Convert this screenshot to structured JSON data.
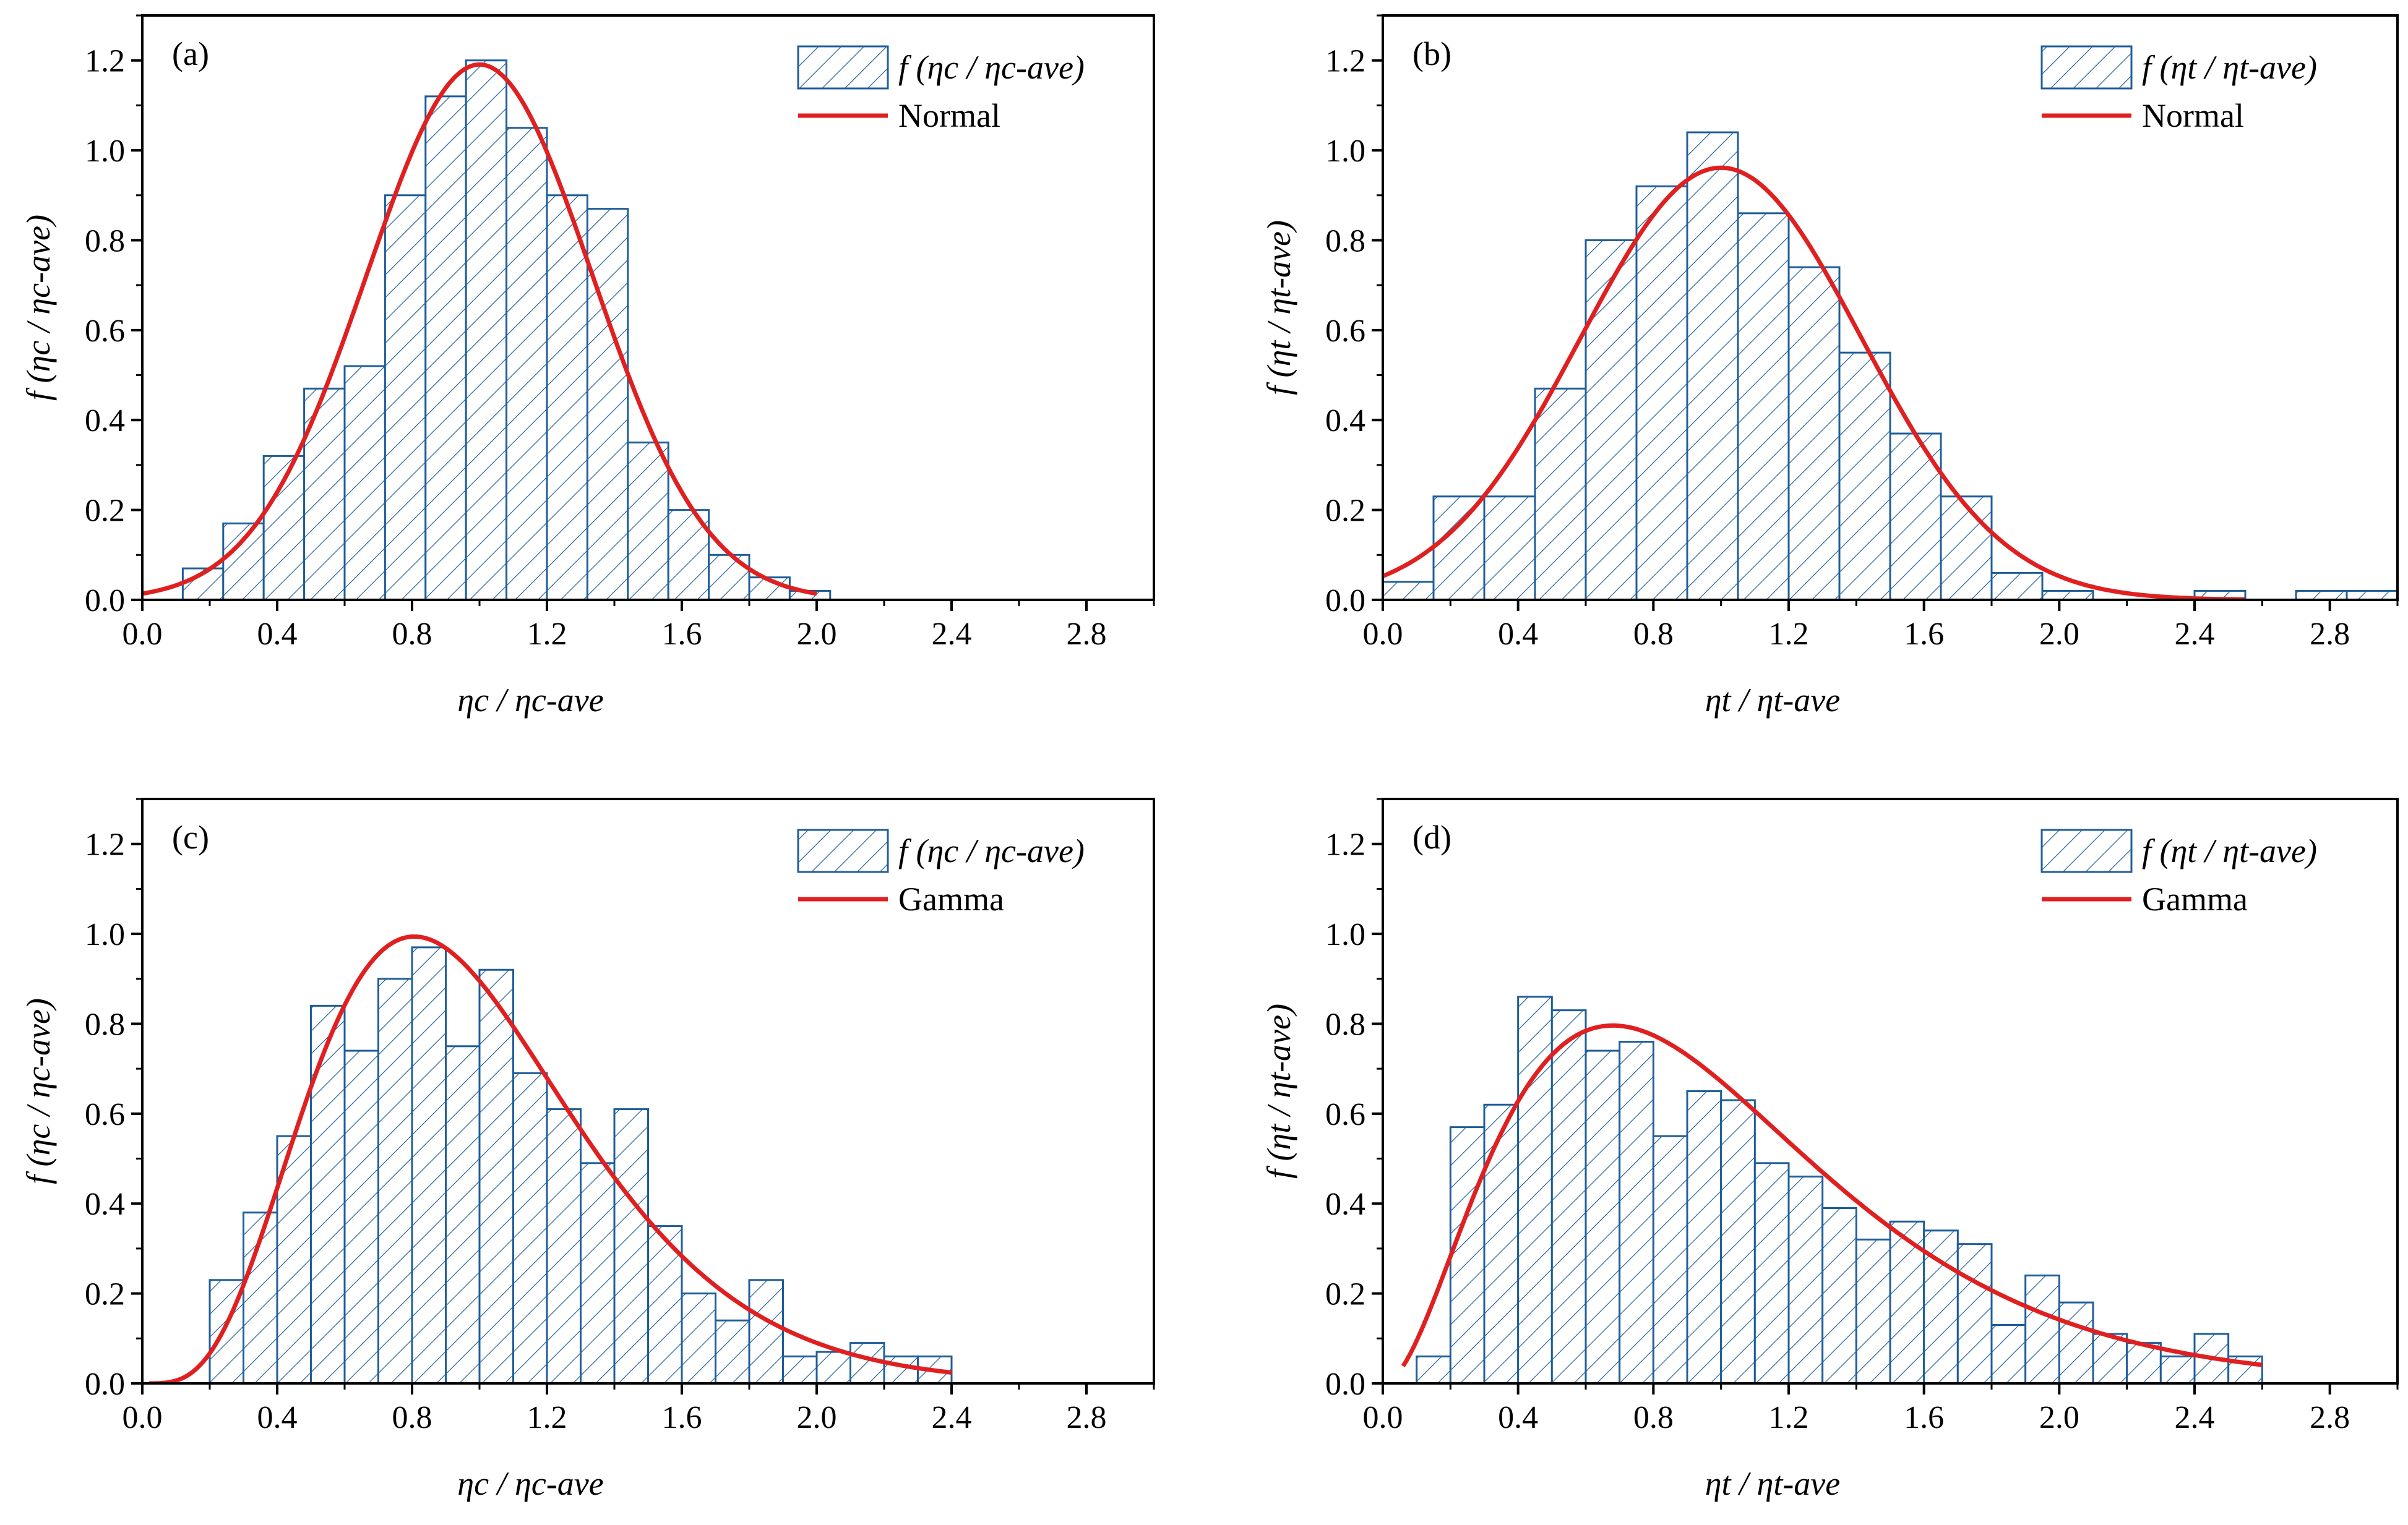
{
  "colors": {
    "bar_stroke": "#1f5e99",
    "bar_fill": "#ffffff",
    "curve": "#e02020",
    "axis": "#000000"
  },
  "chart_data": [
    {
      "type": "bar",
      "panel_label": "(a)",
      "xlabel": "ηc / ηc-ave",
      "ylabel": "f (ηc / ηc-ave)",
      "xlim": [
        0,
        3.0
      ],
      "ylim": [
        0,
        1.3
      ],
      "xticks": [
        "0.0",
        "0.4",
        "0.8",
        "1.2",
        "1.6",
        "2.0",
        "2.4",
        "2.8"
      ],
      "yticks": [
        "0.0",
        "0.2",
        "0.4",
        "0.6",
        "0.8",
        "1.0",
        "1.2"
      ],
      "legend": {
        "position": "top-right",
        "hist_label": "f (ηc / ηc-ave)",
        "curve_label": "Normal"
      },
      "bins": {
        "start": 0.12,
        "width": 0.12,
        "values": [
          0.07,
          0.17,
          0.32,
          0.47,
          0.52,
          0.9,
          1.12,
          1.2,
          1.05,
          0.9,
          0.87,
          0.35,
          0.2,
          0.1,
          0.05,
          0.02
        ]
      },
      "fit": {
        "type": "normal",
        "mean": 1.0,
        "sd": 0.335,
        "x_start": 0.0,
        "x_end": 2.0
      }
    },
    {
      "type": "bar",
      "panel_label": "(b)",
      "xlabel": "ηt / ηt-ave",
      "ylabel": "f (ηt / ηt-ave)",
      "xlim": [
        0,
        3.0
      ],
      "ylim": [
        0,
        1.3
      ],
      "xticks": [
        "0.0",
        "0.4",
        "0.8",
        "1.2",
        "1.6",
        "2.0",
        "2.4",
        "2.8"
      ],
      "yticks": [
        "0.0",
        "0.2",
        "0.4",
        "0.6",
        "0.8",
        "1.0",
        "1.2"
      ],
      "legend": {
        "position": "top-right",
        "hist_label": "f (ηt / ηt-ave)",
        "curve_label": "Normal"
      },
      "bins": {
        "start": 0.0,
        "width": 0.15,
        "values": [
          0.04,
          0.23,
          0.23,
          0.47,
          0.8,
          0.92,
          1.04,
          0.86,
          0.74,
          0.55,
          0.37,
          0.23,
          0.06,
          0.02,
          0,
          0,
          0.02,
          0,
          0.02,
          0.02
        ]
      },
      "fit": {
        "type": "normal",
        "mean": 1.0,
        "sd": 0.415,
        "x_start": 0.0,
        "x_end": 2.55
      }
    },
    {
      "type": "bar",
      "panel_label": "(c)",
      "xlabel": "ηc / ηc-ave",
      "ylabel": "f (ηc / ηc-ave)",
      "xlim": [
        0,
        3.0
      ],
      "ylim": [
        0,
        1.3
      ],
      "xticks": [
        "0.0",
        "0.4",
        "0.8",
        "1.2",
        "1.6",
        "2.0",
        "2.4",
        "2.8"
      ],
      "yticks": [
        "0.0",
        "0.2",
        "0.4",
        "0.6",
        "0.8",
        "1.0",
        "1.2"
      ],
      "legend": {
        "position": "top-right",
        "hist_label": "f (ηc / ηc-ave)",
        "curve_label": "Gamma"
      },
      "bins": {
        "start": 0.2,
        "width": 0.1,
        "values": [
          0.23,
          0.38,
          0.55,
          0.84,
          0.74,
          0.9,
          0.97,
          0.75,
          0.92,
          0.69,
          0.61,
          0.49,
          0.61,
          0.35,
          0.2,
          0.14,
          0.23,
          0.06,
          0.07,
          0.09,
          0.06,
          0.06
        ]
      },
      "fit": {
        "type": "gamma",
        "shape": 5.2,
        "scale": 0.192,
        "x_start": 0.02,
        "x_end": 2.4
      }
    },
    {
      "type": "bar",
      "panel_label": "(d)",
      "xlabel": "ηt / ηt-ave",
      "ylabel": "f (ηt / ηt-ave)",
      "xlim": [
        0,
        3.0
      ],
      "ylim": [
        0,
        1.3
      ],
      "xticks": [
        "0.0",
        "0.4",
        "0.8",
        "1.2",
        "1.6",
        "2.0",
        "2.4",
        "2.8"
      ],
      "yticks": [
        "0.0",
        "0.2",
        "0.4",
        "0.6",
        "0.8",
        "1.0",
        "1.2"
      ],
      "legend": {
        "position": "top-right",
        "hist_label": "f (ηt / ηt-ave)",
        "curve_label": "Gamma"
      },
      "bins": {
        "start": 0.1,
        "width": 0.1,
        "values": [
          0.06,
          0.57,
          0.62,
          0.86,
          0.83,
          0.74,
          0.76,
          0.55,
          0.65,
          0.63,
          0.49,
          0.46,
          0.39,
          0.32,
          0.36,
          0.34,
          0.31,
          0.13,
          0.24,
          0.18,
          0.11,
          0.09,
          0.06,
          0.11,
          0.06
        ]
      },
      "fit": {
        "type": "gamma",
        "shape": 3.0,
        "scale": 0.34,
        "x_start": 0.06,
        "x_end": 2.6
      }
    }
  ]
}
